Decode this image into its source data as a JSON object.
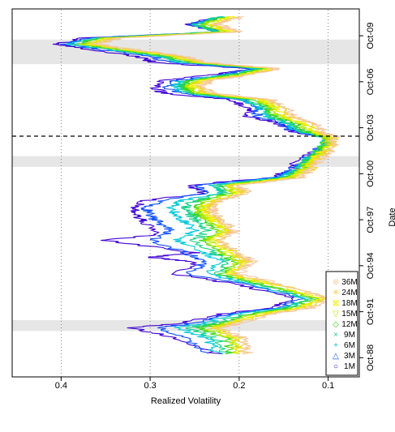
{
  "chart_data": {
    "type": "line",
    "xlabel": "Date",
    "ylabel": "Realized Volatility",
    "xlim": [
      1987.5,
      2011.5
    ],
    "ylim": [
      0.065,
      0.455
    ],
    "grid": "vertical dotted lines at y ticks",
    "x_ticks": [
      {
        "value": 1988.75,
        "label": "Oct-88"
      },
      {
        "value": 1991.75,
        "label": "Oct-91"
      },
      {
        "value": 1994.75,
        "label": "Oct-94"
      },
      {
        "value": 1997.75,
        "label": "Oct-97"
      },
      {
        "value": 2000.75,
        "label": "Oct-00"
      },
      {
        "value": 2003.75,
        "label": "Oct-03"
      },
      {
        "value": 2006.75,
        "label": "Oct-06"
      },
      {
        "value": 2009.75,
        "label": "Oct-09"
      }
    ],
    "y_ticks": [
      {
        "value": 0.1,
        "label": "0.1"
      },
      {
        "value": 0.2,
        "label": "0.2"
      },
      {
        "value": 0.3,
        "label": "0.3"
      },
      {
        "value": 0.4,
        "label": "0.4"
      }
    ],
    "shaded_periods": [
      [
        1990.5,
        1991.2
      ],
      [
        2001.2,
        2001.9
      ],
      [
        2007.9,
        2009.5
      ]
    ],
    "vertical_line": {
      "x": 2003.2,
      "style": "dashed"
    },
    "legend": {
      "placement": "top-left",
      "entries": [
        {
          "label": "1M",
          "symbol": "○",
          "color": "#3f00d4"
        },
        {
          "label": "3M",
          "symbol": "△",
          "color": "#0f50ff"
        },
        {
          "label": "6M",
          "symbol": "+",
          "color": "#00c8d8"
        },
        {
          "label": "9M",
          "symbol": "×",
          "color": "#18d088"
        },
        {
          "label": "12M",
          "symbol": "◇",
          "color": "#3ad61c"
        },
        {
          "label": "15M",
          "symbol": "▽",
          "color": "#b6e600"
        },
        {
          "label": "18M",
          "symbol": "⊠",
          "color": "#f0f000"
        },
        {
          "label": "24M",
          "symbol": "✳",
          "color": "#f2d040"
        },
        {
          "label": "36M",
          "symbol": "⊕",
          "color": "#f5c8a0"
        }
      ]
    },
    "series": [
      {
        "name": "1M",
        "color": "#3f00d4",
        "x": [
          1989.0,
          1990.0,
          1990.7,
          1991.0,
          1991.6,
          1992.0,
          1992.6,
          1993.5,
          1994.2,
          1995.0,
          1995.3,
          1995.6,
          1996.4,
          1996.8,
          1997.6,
          1998.0,
          1998.5,
          1999.0,
          1999.5,
          2000.0,
          2000.5,
          2001.0,
          2001.6,
          2002.0,
          2002.6,
          2003.1,
          2003.5,
          2004.0,
          2004.5,
          2005.0,
          2005.6,
          2006.0,
          2006.4,
          2006.8,
          2007.2,
          2007.6,
          2008.0,
          2008.4,
          2008.8,
          2009.2,
          2009.6,
          2010.0,
          2010.5,
          2011.0
        ],
        "values": [
          0.225,
          0.27,
          0.32,
          0.265,
          0.22,
          0.165,
          0.135,
          0.2,
          0.27,
          0.25,
          0.3,
          0.25,
          0.35,
          0.29,
          0.305,
          0.315,
          0.32,
          0.305,
          0.24,
          0.255,
          0.165,
          0.14,
          0.135,
          0.12,
          0.1,
          0.1,
          0.14,
          0.155,
          0.19,
          0.19,
          0.21,
          0.285,
          0.295,
          0.29,
          0.23,
          0.19,
          0.295,
          0.315,
          0.36,
          0.405,
          0.375,
          0.22,
          0.26,
          0.22
        ]
      },
      {
        "name": "3M",
        "color": "#0f50ff",
        "x": [
          1989.0,
          1990.0,
          1990.7,
          1991.0,
          1991.6,
          1992.0,
          1992.6,
          1993.5,
          1994.2,
          1995.0,
          1995.6,
          1996.4,
          1997.0,
          1997.6,
          1998.0,
          1998.5,
          1999.0,
          1999.5,
          2000.0,
          2000.5,
          2001.0,
          2001.6,
          2002.0,
          2002.6,
          2003.1,
          2003.5,
          2004.0,
          2004.5,
          2005.0,
          2005.6,
          2006.0,
          2006.4,
          2006.8,
          2007.2,
          2007.6,
          2008.0,
          2008.4,
          2008.8,
          2009.2,
          2009.6,
          2010.0,
          2010.5,
          2011.0
        ],
        "values": [
          0.24,
          0.26,
          0.29,
          0.25,
          0.21,
          0.155,
          0.13,
          0.19,
          0.255,
          0.24,
          0.26,
          0.3,
          0.275,
          0.29,
          0.3,
          0.305,
          0.29,
          0.235,
          0.245,
          0.16,
          0.14,
          0.13,
          0.12,
          0.105,
          0.1,
          0.14,
          0.15,
          0.18,
          0.18,
          0.2,
          0.27,
          0.28,
          0.275,
          0.22,
          0.185,
          0.275,
          0.3,
          0.35,
          0.395,
          0.37,
          0.225,
          0.255,
          0.22
        ]
      },
      {
        "name": "6M",
        "color": "#00c8d8",
        "x": [
          1989.0,
          1990.0,
          1990.7,
          1991.0,
          1991.6,
          1992.0,
          1992.6,
          1993.5,
          1994.2,
          1995.0,
          1995.6,
          1996.4,
          1997.0,
          1997.6,
          1998.0,
          1998.5,
          1999.0,
          1999.5,
          2000.0,
          2000.5,
          2001.0,
          2001.6,
          2002.0,
          2002.6,
          2003.1,
          2003.5,
          2004.0,
          2004.5,
          2005.0,
          2005.6,
          2006.0,
          2006.4,
          2006.8,
          2007.2,
          2007.6,
          2008.0,
          2008.4,
          2008.8,
          2009.2,
          2009.6,
          2010.0,
          2010.5,
          2011.0
        ],
        "values": [
          0.225,
          0.235,
          0.27,
          0.24,
          0.2,
          0.15,
          0.125,
          0.18,
          0.235,
          0.22,
          0.24,
          0.27,
          0.25,
          0.26,
          0.27,
          0.275,
          0.265,
          0.22,
          0.23,
          0.155,
          0.135,
          0.125,
          0.115,
          0.105,
          0.1,
          0.135,
          0.145,
          0.17,
          0.175,
          0.195,
          0.26,
          0.27,
          0.265,
          0.215,
          0.18,
          0.265,
          0.29,
          0.34,
          0.39,
          0.365,
          0.225,
          0.25,
          0.22
        ]
      },
      {
        "name": "9M",
        "color": "#18d088",
        "x": [
          1989.0,
          1990.0,
          1990.7,
          1991.0,
          1991.6,
          1992.0,
          1992.6,
          1993.5,
          1994.2,
          1995.0,
          1995.6,
          1996.4,
          1997.0,
          1997.6,
          1998.0,
          1998.5,
          1999.0,
          1999.5,
          2000.0,
          2000.5,
          2001.0,
          2001.6,
          2002.0,
          2002.6,
          2003.1,
          2003.5,
          2004.0,
          2004.5,
          2005.0,
          2005.6,
          2006.0,
          2006.4,
          2006.8,
          2007.2,
          2007.6,
          2008.0,
          2008.4,
          2008.8,
          2009.2,
          2009.6,
          2010.0,
          2010.5,
          2011.0
        ],
        "values": [
          0.215,
          0.225,
          0.255,
          0.23,
          0.19,
          0.145,
          0.12,
          0.175,
          0.225,
          0.21,
          0.23,
          0.25,
          0.235,
          0.245,
          0.255,
          0.26,
          0.25,
          0.215,
          0.225,
          0.15,
          0.135,
          0.125,
          0.115,
          0.105,
          0.1,
          0.13,
          0.14,
          0.165,
          0.17,
          0.19,
          0.255,
          0.265,
          0.26,
          0.21,
          0.175,
          0.26,
          0.285,
          0.335,
          0.385,
          0.36,
          0.225,
          0.25,
          0.22
        ]
      },
      {
        "name": "12M",
        "color": "#3ad61c",
        "x": [
          1989.0,
          1990.0,
          1990.7,
          1991.0,
          1991.6,
          1992.0,
          1992.6,
          1993.5,
          1994.2,
          1995.0,
          1995.6,
          1996.4,
          1997.0,
          1997.6,
          1998.0,
          1998.5,
          1999.0,
          1999.5,
          2000.0,
          2000.5,
          2001.0,
          2001.6,
          2002.0,
          2002.6,
          2003.1,
          2003.5,
          2004.0,
          2004.5,
          2005.0,
          2005.6,
          2006.0,
          2006.4,
          2006.8,
          2007.2,
          2007.6,
          2008.0,
          2008.4,
          2008.8,
          2009.2,
          2009.6,
          2010.0,
          2010.5,
          2011.0
        ],
        "values": [
          0.21,
          0.215,
          0.245,
          0.22,
          0.185,
          0.14,
          0.115,
          0.17,
          0.22,
          0.205,
          0.22,
          0.24,
          0.225,
          0.235,
          0.245,
          0.25,
          0.24,
          0.21,
          0.22,
          0.145,
          0.13,
          0.12,
          0.115,
          0.105,
          0.1,
          0.125,
          0.135,
          0.16,
          0.165,
          0.185,
          0.25,
          0.26,
          0.255,
          0.205,
          0.17,
          0.255,
          0.28,
          0.33,
          0.38,
          0.355,
          0.22,
          0.245,
          0.215
        ]
      },
      {
        "name": "15M",
        "color": "#b6e600",
        "x": [
          1989.0,
          1990.0,
          1990.7,
          1991.0,
          1991.6,
          1992.0,
          1992.6,
          1993.5,
          1994.2,
          1995.0,
          1995.6,
          1996.4,
          1997.0,
          1997.6,
          1998.0,
          1998.5,
          1999.0,
          1999.5,
          2000.0,
          2000.5,
          2001.0,
          2001.6,
          2002.0,
          2002.6,
          2003.1,
          2003.5,
          2004.0,
          2004.5,
          2005.0,
          2005.6,
          2006.0,
          2006.4,
          2006.8,
          2007.2,
          2007.6,
          2008.0,
          2008.4,
          2008.8,
          2009.2,
          2009.6,
          2010.0,
          2010.5,
          2011.0
        ],
        "values": [
          0.205,
          0.21,
          0.235,
          0.215,
          0.18,
          0.135,
          0.11,
          0.165,
          0.215,
          0.2,
          0.215,
          0.235,
          0.22,
          0.23,
          0.24,
          0.245,
          0.235,
          0.205,
          0.215,
          0.14,
          0.13,
          0.12,
          0.11,
          0.1,
          0.1,
          0.12,
          0.13,
          0.155,
          0.16,
          0.18,
          0.245,
          0.255,
          0.25,
          0.2,
          0.165,
          0.25,
          0.275,
          0.325,
          0.375,
          0.35,
          0.215,
          0.24,
          0.21
        ]
      },
      {
        "name": "18M",
        "color": "#f0f000",
        "x": [
          1989.0,
          1990.0,
          1990.7,
          1991.0,
          1991.6,
          1992.0,
          1992.6,
          1993.5,
          1994.2,
          1995.0,
          1995.6,
          1996.4,
          1997.0,
          1997.6,
          1998.0,
          1998.5,
          1999.0,
          1999.5,
          2000.0,
          2000.5,
          2001.0,
          2001.6,
          2002.0,
          2002.6,
          2003.1,
          2003.5,
          2004.0,
          2004.5,
          2005.0,
          2005.6,
          2006.0,
          2006.4,
          2006.8,
          2007.2,
          2007.6,
          2008.0,
          2008.4,
          2008.8,
          2009.2,
          2009.6,
          2010.0,
          2010.5,
          2011.0
        ],
        "values": [
          0.2,
          0.205,
          0.23,
          0.21,
          0.175,
          0.13,
          0.105,
          0.16,
          0.21,
          0.195,
          0.21,
          0.23,
          0.215,
          0.225,
          0.235,
          0.24,
          0.23,
          0.2,
          0.21,
          0.14,
          0.125,
          0.115,
          0.11,
          0.1,
          0.095,
          0.115,
          0.125,
          0.15,
          0.155,
          0.175,
          0.24,
          0.25,
          0.245,
          0.195,
          0.16,
          0.245,
          0.27,
          0.32,
          0.37,
          0.345,
          0.21,
          0.235,
          0.205
        ]
      },
      {
        "name": "24M",
        "color": "#f2d040",
        "x": [
          1989.0,
          1990.0,
          1990.7,
          1991.0,
          1991.6,
          1992.0,
          1992.6,
          1993.5,
          1994.2,
          1995.0,
          1995.6,
          1996.4,
          1997.0,
          1997.6,
          1998.0,
          1998.5,
          1999.0,
          1999.5,
          2000.0,
          2000.5,
          2001.0,
          2001.6,
          2002.0,
          2002.6,
          2003.1,
          2003.5,
          2004.0,
          2004.5,
          2005.0,
          2005.6,
          2006.0,
          2006.4,
          2006.8,
          2007.2,
          2007.6,
          2008.0,
          2008.4,
          2008.8,
          2009.2,
          2009.6,
          2010.0,
          2010.5,
          2011.0
        ],
        "values": [
          0.195,
          0.2,
          0.225,
          0.205,
          0.17,
          0.125,
          0.1,
          0.155,
          0.205,
          0.19,
          0.205,
          0.225,
          0.21,
          0.22,
          0.23,
          0.235,
          0.225,
          0.195,
          0.205,
          0.135,
          0.12,
          0.115,
          0.105,
          0.095,
          0.095,
          0.11,
          0.12,
          0.145,
          0.15,
          0.17,
          0.235,
          0.245,
          0.24,
          0.19,
          0.16,
          0.24,
          0.265,
          0.315,
          0.365,
          0.34,
          0.205,
          0.23,
          0.2
        ]
      },
      {
        "name": "36M",
        "color": "#f5c8a0",
        "x": [
          1989.0,
          1990.0,
          1990.7,
          1991.0,
          1991.6,
          1992.0,
          1992.6,
          1993.5,
          1994.2,
          1995.0,
          1995.6,
          1996.4,
          1997.0,
          1997.6,
          1998.0,
          1998.5,
          1999.0,
          1999.5,
          2000.0,
          2000.5,
          2001.0,
          2001.6,
          2002.0,
          2002.6,
          2003.1,
          2003.5,
          2004.0,
          2004.5,
          2005.0,
          2005.6,
          2006.0,
          2006.4,
          2006.8,
          2007.2,
          2007.6,
          2008.0,
          2008.4,
          2008.8,
          2009.2,
          2009.6,
          2010.0,
          2010.5,
          2011.0
        ],
        "values": [
          0.19,
          0.195,
          0.22,
          0.2,
          0.165,
          0.12,
          0.095,
          0.15,
          0.2,
          0.185,
          0.2,
          0.22,
          0.205,
          0.215,
          0.225,
          0.23,
          0.22,
          0.19,
          0.2,
          0.13,
          0.12,
          0.11,
          0.1,
          0.095,
          0.09,
          0.105,
          0.115,
          0.14,
          0.145,
          0.165,
          0.23,
          0.24,
          0.235,
          0.185,
          0.155,
          0.235,
          0.26,
          0.31,
          0.36,
          0.335,
          0.2,
          0.225,
          0.195
        ]
      }
    ]
  }
}
